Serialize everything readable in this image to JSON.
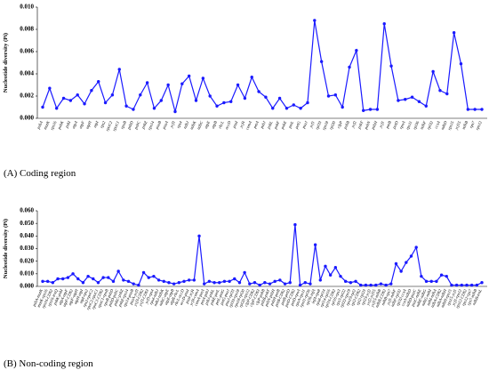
{
  "chart_data": [
    {
      "type": "line",
      "caption": "(A) Coding region",
      "ylabel": "Nucleotide diversity (Pi)",
      "color": "#1a1aff",
      "grid": false,
      "ylim": [
        0,
        0.01
      ],
      "yticks": [
        {
          "value": 0,
          "label": "0.000"
        },
        {
          "value": 0.002,
          "label": "0.002"
        },
        {
          "value": 0.004,
          "label": "0.004"
        },
        {
          "value": 0.006,
          "label": "0.006"
        },
        {
          "value": 0.008,
          "label": "0.008"
        },
        {
          "value": 0.01,
          "label": "0.010"
        }
      ],
      "categories": [
        "psbA",
        "matK",
        "rps16",
        "psbK",
        "psbI",
        "atpA",
        "atpF",
        "atpH",
        "atpI",
        "rps2",
        "rpoC2",
        "rpoC1",
        "rpoB",
        "psbD",
        "psbC",
        "psbZ",
        "rps14",
        "psaB",
        "psaA",
        "ycf3",
        "rps4",
        "ndhJ",
        "ndhK",
        "ndhC",
        "atpE",
        "atpB",
        "rbcL",
        "accD",
        "psaI",
        "ycf4",
        "cemA",
        "petA",
        "psbJ",
        "psbL",
        "psbF",
        "psbE",
        "petL",
        "petG",
        "psaJ",
        "ycf1",
        "rpl33",
        "rps18",
        "rpl20",
        "clpP",
        "psbB",
        "ycf2",
        "psbT",
        "psbN",
        "psbH",
        "ycf1",
        "petB",
        "petD",
        "rpoA",
        "rps11",
        "rpl36",
        "ndhF",
        "rpl32",
        "ccsA",
        "ndhD",
        "rps15",
        "ycf15",
        "ndhB",
        "rps7",
        "rps12"
      ],
      "values": [
        0.001,
        0.0027,
        0.0009,
        0.0018,
        0.0016,
        0.0021,
        0.0013,
        0.0025,
        0.0033,
        0.0014,
        0.0021,
        0.0044,
        0.0011,
        0.0008,
        0.0021,
        0.0032,
        0.0009,
        0.0016,
        0.003,
        0.0006,
        0.0031,
        0.0038,
        0.0016,
        0.0036,
        0.002,
        0.0011,
        0.0014,
        0.0015,
        0.003,
        0.0018,
        0.0037,
        0.0024,
        0.0019,
        0.0009,
        0.0018,
        0.0009,
        0.0012,
        0.0009,
        0.0014,
        0.0088,
        0.0051,
        0.002,
        0.0021,
        0.001,
        0.0046,
        0.0061,
        0.0007,
        0.0008,
        0.0008,
        0.0085,
        0.0047,
        0.0016,
        0.0017,
        0.0019,
        0.0015,
        0.0011,
        0.0042,
        0.0025,
        0.0022,
        0.0077,
        0.0049,
        0.0008,
        0.0008,
        0.0008
      ]
    },
    {
      "type": "line",
      "caption": "(B) Non-coding region",
      "ylabel": "Nucleotide diversity (Pi)",
      "color": "#1a1aff",
      "grid": false,
      "ylim": [
        0,
        0.06
      ],
      "yticks": [
        {
          "value": 0,
          "label": "0.000"
        },
        {
          "value": 0.01,
          "label": "0.010"
        },
        {
          "value": 0.02,
          "label": "0.020"
        },
        {
          "value": 0.03,
          "label": "0.030"
        },
        {
          "value": 0.04,
          "label": "0.040"
        },
        {
          "value": 0.05,
          "label": "0.050"
        },
        {
          "value": 0.06,
          "label": "0.060"
        }
      ],
      "categories": [
        "psbA-matK",
        "matK-rps16",
        "rps16-CDS2",
        "rps16-trnQ",
        "psbK-psbI",
        "atpA-atpF",
        "atpF-CDS2",
        "atpF-atpH",
        "atpH-atpI",
        "atpI-rps2",
        "rps2-rpoC2",
        "rpoC2-rpoC1",
        "rpoC1-CDS2",
        "rpoC1-rpoB",
        "rpoB-psbD",
        "psbD-psbC",
        "psbC-psbZ",
        "psbZ-rps14",
        "rps14-psaB",
        "psaA-ycf3",
        "ycf3-CDS2",
        "ycf3-CDS3",
        "ycf3-rps4",
        "rps4-ndhJ",
        "ndhJ-ndhK",
        "ndhC-atpE",
        "atpE-atpB",
        "atpB-rbcL",
        "rbcL-accD",
        "accD-psaI",
        "psaI-ycf4",
        "ycf4-cemA",
        "cemA-petA",
        "petA-psbJ",
        "psbJ-psbL",
        "psbE-petL",
        "petL-petG",
        "petG-psaJ",
        "psaJ-rpl33",
        "rpl33-rps18",
        "rps18-rpl20",
        "rpl20-rps12",
        "clpP-CDS2",
        "clpP-CDS3",
        "clpP-psbB",
        "psbB-psbT",
        "psbN-psbH",
        "psbH-petB",
        "petB-CDS2",
        "petB-petD",
        "petD-CDS2",
        "petD-rpoA",
        "rpoA-rps11",
        "rps11-rpl36",
        "rpl36-infA",
        "infA-rps8",
        "rps8-rpl14",
        "rpl14-rpl16",
        "rpl16-CDS2",
        "rpl16-rps3",
        "rps3-rpl22",
        "rpl22-rps19",
        "rps19-rpl2",
        "rpl2-CDS2",
        "rpl2-rpl23",
        "rpl23-ycf2",
        "ycf2-ycf15",
        "ycf15-ndhB",
        "ndhB-CDS2",
        "ndhB-rps7",
        "ycf1-ndhF",
        "ndhF-rpl32",
        "rpl32-ccsA",
        "ccsA-ndhD",
        "ndhD-psaC",
        "psaC-ndhE",
        "ndhE-ndhG",
        "ndhG-ndhI",
        "ndhI-ndhA",
        "ndhA-CDS2",
        "ndhA-ndhH",
        "ndhH-rps15",
        "rps15-ycf1",
        "ycf1-rps12",
        "rps12-CDS2",
        "rps12-rps7",
        "rps7-ndhB",
        "ndhB-trnL"
      ],
      "values": [
        0.004,
        0.004,
        0.003,
        0.006,
        0.006,
        0.007,
        0.01,
        0.006,
        0.003,
        0.008,
        0.006,
        0.003,
        0.007,
        0.007,
        0.004,
        0.012,
        0.005,
        0.004,
        0.002,
        0.001,
        0.011,
        0.007,
        0.008,
        0.005,
        0.004,
        0.003,
        0.002,
        0.003,
        0.004,
        0.005,
        0.005,
        0.04,
        0.002,
        0.004,
        0.003,
        0.003,
        0.004,
        0.004,
        0.006,
        0.003,
        0.011,
        0.002,
        0.003,
        0.001,
        0.003,
        0.002,
        0.004,
        0.005,
        0.002,
        0.003,
        0.049,
        0.001,
        0.003,
        0.002,
        0.033,
        0.005,
        0.016,
        0.009,
        0.015,
        0.008,
        0.004,
        0.003,
        0.004,
        0.001,
        0.001,
        0.001,
        0.001,
        0.002,
        0.001,
        0.002,
        0.018,
        0.012,
        0.019,
        0.024,
        0.031,
        0.008,
        0.004,
        0.004,
        0.004,
        0.009,
        0.008,
        0.001,
        0.001,
        0.001,
        0.001,
        0.001,
        0.001,
        0.003
      ]
    }
  ]
}
